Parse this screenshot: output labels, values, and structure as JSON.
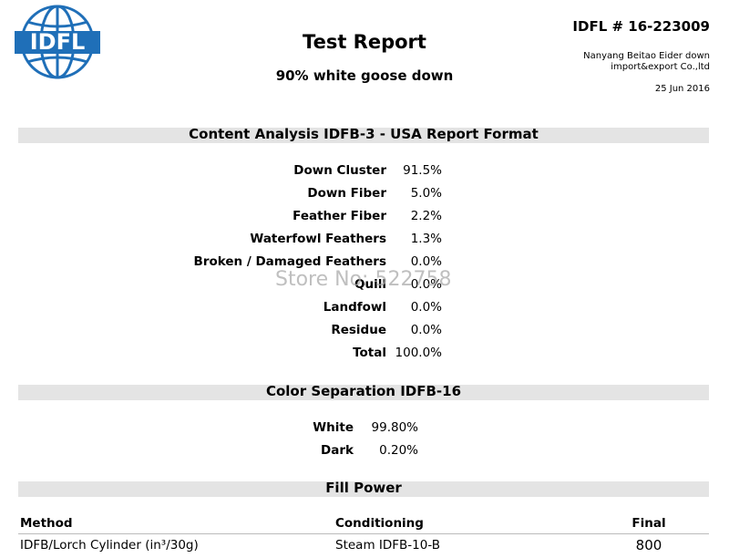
{
  "logo": {
    "text": "IDFL"
  },
  "header": {
    "title": "Test Report",
    "subtitle": "90% white goose down",
    "report_number": "IDFL # 16-223009",
    "client": [
      "Nanyang Beitao Eider down",
      "import&export Co.,ltd"
    ],
    "date": "25 Jun 2016"
  },
  "content_analysis": {
    "title": "Content Analysis IDFB-3 - USA Report Format",
    "rows": [
      [
        "Down Cluster",
        "91.5%"
      ],
      [
        "Down Fiber",
        "5.0%"
      ],
      [
        "Feather Fiber",
        "2.2%"
      ],
      [
        "Waterfowl Feathers",
        "1.3%"
      ],
      [
        "Broken / Damaged Feathers",
        "0.0%"
      ],
      [
        "Quill",
        "0.0%"
      ],
      [
        "Landfowl",
        "0.0%"
      ],
      [
        "Residue",
        "0.0%"
      ],
      [
        "Total",
        "100.0%"
      ]
    ]
  },
  "color_separation": {
    "title": "Color Separation IDFB-16",
    "rows": [
      [
        "White",
        "99.80%"
      ],
      [
        "Dark",
        "0.20%"
      ]
    ]
  },
  "fill_power": {
    "title": "Fill Power",
    "columns": [
      "Method",
      "Conditioning",
      "Final"
    ],
    "rows": [
      [
        "IDFB/Lorch Cylinder (in³/30g)",
        "Steam IDFB-10-B",
        "800"
      ]
    ]
  },
  "watermark": "Store No: 522758"
}
